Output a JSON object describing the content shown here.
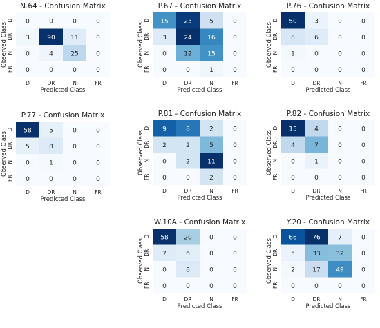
{
  "figure": {
    "panel_positions": [
      "top-left",
      "top-center",
      "top-right",
      "middle-left",
      "middle-center",
      "middle-right",
      "bottom-center",
      "bottom-right"
    ]
  },
  "chart_data": [
    {
      "type": "heatmap",
      "title": "N.64 - Confusion Matrix",
      "xlabel": "Predicted Class",
      "ylabel": "Observed Class",
      "x_categories": [
        "D",
        "DR",
        "N",
        "FR"
      ],
      "y_categories": [
        "D",
        "DR",
        "N",
        "FR"
      ],
      "values": [
        [
          0,
          0,
          0,
          0
        ],
        [
          3,
          90,
          11,
          0
        ],
        [
          0,
          4,
          25,
          0
        ],
        [
          0,
          0,
          0,
          0
        ]
      ],
      "colormap": "Blues",
      "colorbar": false
    },
    {
      "type": "heatmap",
      "title": "P.67 - Confusion Matrix",
      "xlabel": "Predicted Class",
      "ylabel": "Observed Class",
      "x_categories": [
        "D",
        "DR",
        "N",
        "FR"
      ],
      "y_categories": [
        "D",
        "DR",
        "N",
        "FR"
      ],
      "values": [
        [
          15,
          23,
          5,
          0
        ],
        [
          3,
          24,
          16,
          0
        ],
        [
          0,
          12,
          15,
          0
        ],
        [
          0,
          0,
          1,
          0
        ]
      ],
      "colormap": "Blues",
      "colorbar": false
    },
    {
      "type": "heatmap",
      "title": "P.76 - Confusion Matrix",
      "xlabel": "Predicted Class",
      "ylabel": "Observed Class",
      "x_categories": [
        "D",
        "DR",
        "N",
        "FR"
      ],
      "y_categories": [
        "D",
        "DR",
        "N",
        "FR"
      ],
      "values": [
        [
          50,
          3,
          0,
          0
        ],
        [
          8,
          6,
          0,
          0
        ],
        [
          1,
          0,
          0,
          0
        ],
        [
          0,
          0,
          0,
          0
        ]
      ],
      "colormap": "Blues",
      "colorbar": false
    },
    {
      "type": "heatmap",
      "title": "P.77 - Confusion Matrix",
      "xlabel": "Predicted Class",
      "ylabel": "Observed Class",
      "x_categories": [
        "D",
        "DR",
        "N",
        "FR"
      ],
      "y_categories": [
        "D",
        "DR",
        "N",
        "FR"
      ],
      "values": [
        [
          58,
          5,
          0,
          0
        ],
        [
          5,
          8,
          0,
          0
        ],
        [
          0,
          1,
          0,
          0
        ],
        [
          0,
          0,
          0,
          0
        ]
      ],
      "colormap": "Blues",
      "colorbar": false
    },
    {
      "type": "heatmap",
      "title": "P.81 - Confusion Matrix",
      "xlabel": "Predicted Class",
      "ylabel": "Observed Class",
      "x_categories": [
        "D",
        "DR",
        "N",
        "FR"
      ],
      "y_categories": [
        "D",
        "DR",
        "N",
        "FR"
      ],
      "values": [
        [
          9,
          8,
          2,
          0
        ],
        [
          2,
          2,
          5,
          0
        ],
        [
          0,
          2,
          11,
          0
        ],
        [
          0,
          0,
          2,
          0
        ]
      ],
      "colormap": "Blues",
      "colorbar": false
    },
    {
      "type": "heatmap",
      "title": "P.82 - Confusion Matrix",
      "xlabel": "Predicted Class",
      "ylabel": "Observed Class",
      "x_categories": [
        "D",
        "DR",
        "N",
        "FR"
      ],
      "y_categories": [
        "D",
        "DR",
        "N",
        "FR"
      ],
      "values": [
        [
          15,
          4,
          0,
          0
        ],
        [
          4,
          7,
          0,
          0
        ],
        [
          0,
          1,
          0,
          0
        ],
        [
          0,
          0,
          0,
          0
        ]
      ],
      "colormap": "Blues",
      "colorbar": false
    },
    {
      "type": "heatmap",
      "title": "W.10A - Confusion Matrix",
      "xlabel": "Predicted Class",
      "ylabel": "Observed Class",
      "x_categories": [
        "D",
        "DR",
        "N",
        "FR"
      ],
      "y_categories": [
        "D",
        "DR",
        "N",
        "FR"
      ],
      "values": [
        [
          58,
          20,
          0,
          0
        ],
        [
          7,
          6,
          0,
          0
        ],
        [
          0,
          8,
          0,
          0
        ],
        [
          0,
          0,
          0,
          0
        ]
      ],
      "colormap": "Blues",
      "colorbar": false
    },
    {
      "type": "heatmap",
      "title": "Y.20 - Confusion Matrix",
      "xlabel": "Predicted Class",
      "ylabel": "Observed Class",
      "x_categories": [
        "D",
        "DR",
        "N",
        "FR"
      ],
      "y_categories": [
        "D",
        "DR",
        "N",
        "FR"
      ],
      "values": [
        [
          66,
          76,
          7,
          0
        ],
        [
          5,
          33,
          32,
          0
        ],
        [
          2,
          17,
          49,
          0
        ],
        [
          0,
          0,
          0,
          0
        ]
      ],
      "colormap": "Blues",
      "colorbar": false
    }
  ]
}
